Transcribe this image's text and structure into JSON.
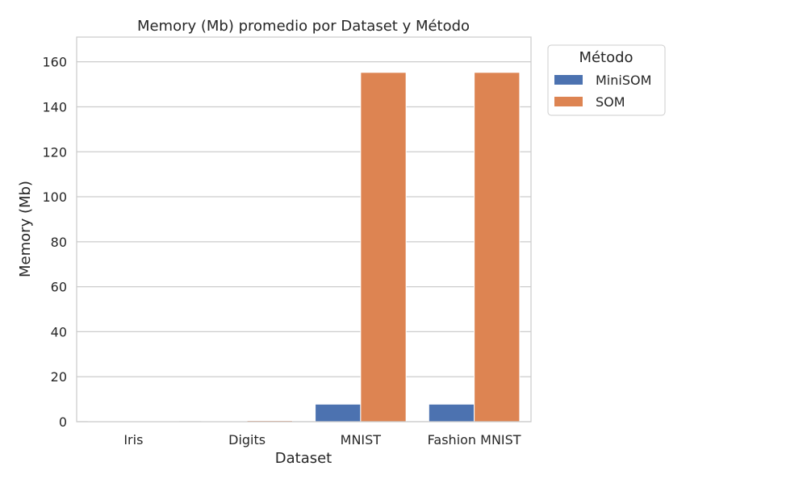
{
  "chart_data": {
    "type": "bar",
    "title": "Memory (Mb) promedio por Dataset y Método",
    "xlabel": "Dataset",
    "ylabel": "Memory (Mb)",
    "categories": [
      "Iris",
      "Digits",
      "MNIST",
      "Fashion MNIST"
    ],
    "ylim": [
      0,
      171
    ],
    "yticks": [
      0,
      20,
      40,
      60,
      80,
      100,
      120,
      140,
      160
    ],
    "grid": true,
    "legend": {
      "title": "Método",
      "placement": "outside-top-right"
    },
    "series": [
      {
        "name": "MiniSOM",
        "color": "#4c72b0",
        "values": [
          0.2,
          0.3,
          7.8,
          7.8
        ]
      },
      {
        "name": "SOM",
        "color": "#dd8452",
        "values": [
          0.2,
          0.5,
          155.3,
          155.3
        ]
      }
    ]
  }
}
